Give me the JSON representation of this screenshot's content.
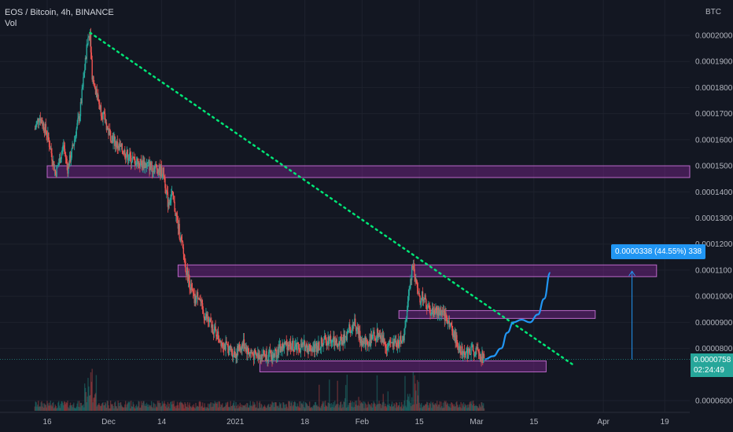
{
  "legend": {
    "symbol": "EOS / Bitcoin, 4h, BINANCE",
    "volume": "Vol"
  },
  "currency": "BTC",
  "last_price": {
    "value": "0.0000758",
    "countdown": "02:24:49"
  },
  "measure": {
    "label": "0.0000338 (44.55%) 338"
  },
  "colors": {
    "background": "#131722",
    "up": "#26a69a",
    "down": "#ef5350",
    "zone_fill": "#9c27b0",
    "trendline": "#00e676",
    "projection": "#2196f3",
    "measure": "#2196f3"
  },
  "chart_data": {
    "type": "candlestick",
    "title": "EOS / Bitcoin, 4h, BINANCE",
    "y_axis": {
      "ticks": [
        "0.0002000",
        "0.0001900",
        "0.0001800",
        "0.0001700",
        "0.0001600",
        "0.0001500",
        "0.0001400",
        "0.0001300",
        "0.0001200",
        "0.0001100",
        "0.0001000",
        "0.0000900",
        "0.0000800",
        "0.0000600"
      ],
      "tick_values": [
        0.0002,
        0.00019,
        0.00018,
        0.00017,
        0.00016,
        0.00015,
        0.00014,
        0.00013,
        0.00012,
        0.00011,
        0.0001,
        9e-05,
        8e-05,
        6e-05
      ],
      "range": [
        5.7e-05,
        0.000205
      ]
    },
    "x_axis": {
      "ticks": [
        "16",
        "Dec",
        "14",
        "2021",
        "18",
        "Feb",
        "15",
        "Mar",
        "15",
        "Apr",
        "19"
      ],
      "tick_values": [
        0,
        15,
        28,
        46,
        63,
        77,
        91,
        105,
        119,
        136,
        151
      ],
      "unit": "days from Nov 16, 2020",
      "range": [
        -3,
        160
      ]
    },
    "price_path": [
      [
        -3,
        0.000164
      ],
      [
        -2,
        0.000169
      ],
      [
        -1,
        0.000166
      ],
      [
        0,
        0.000162
      ],
      [
        1,
        0.000155
      ],
      [
        2,
        0.000147
      ],
      [
        3,
        0.000152
      ],
      [
        4,
        0.000158
      ],
      [
        5,
        0.000149
      ],
      [
        6,
        0.000155
      ],
      [
        7,
        0.000163
      ],
      [
        8,
        0.00017
      ],
      [
        9,
        0.000185
      ],
      [
        10,
        0.000199
      ],
      [
        10.5,
        0.000201
      ],
      [
        11,
        0.000185
      ],
      [
        12,
        0.000178
      ],
      [
        13,
        0.000172
      ],
      [
        14,
        0.000168
      ],
      [
        15,
        0.000163
      ],
      [
        17,
        0.000158
      ],
      [
        19,
        0.000155
      ],
      [
        21,
        0.000152
      ],
      [
        23,
        0.000151
      ],
      [
        25,
        0.00015
      ],
      [
        27,
        0.000149
      ],
      [
        28.5,
        0.000147
      ],
      [
        29.5,
        0.000136
      ],
      [
        30.5,
        0.000139
      ],
      [
        31,
        0.000135
      ],
      [
        32,
        0.000127
      ],
      [
        33,
        0.000119
      ],
      [
        34,
        0.00011
      ],
      [
        35,
        0.000104
      ],
      [
        36,
        9.8e-05
      ],
      [
        37,
        0.000101
      ],
      [
        38,
        9.4e-05
      ],
      [
        40,
        8.9e-05
      ],
      [
        42,
        8.4e-05
      ],
      [
        44,
        8e-05
      ],
      [
        46,
        7.8e-05
      ],
      [
        48,
        8.2e-05
      ],
      [
        49,
        7.9e-05
      ],
      [
        51,
        7.7e-05
      ],
      [
        53,
        7.8e-05
      ],
      [
        55,
        7.7e-05
      ],
      [
        57,
        8e-05
      ],
      [
        59,
        8.2e-05
      ],
      [
        61,
        8e-05
      ],
      [
        63,
        8.1e-05
      ],
      [
        65,
        8e-05
      ],
      [
        67,
        8.2e-05
      ],
      [
        69,
        8.4e-05
      ],
      [
        71,
        8.1e-05
      ],
      [
        73,
        8.5e-05
      ],
      [
        75,
        9e-05
      ],
      [
        77,
        8.2e-05
      ],
      [
        79,
        8.3e-05
      ],
      [
        81,
        8.6e-05
      ],
      [
        83,
        8.1e-05
      ],
      [
        85,
        8.2e-05
      ],
      [
        87,
        8.3e-05
      ],
      [
        88,
        9.5e-05
      ],
      [
        89,
        0.000108
      ],
      [
        89.5,
        0.000113
      ],
      [
        90,
        0.000106
      ],
      [
        91,
        9.9e-05
      ],
      [
        92,
        0.0001
      ],
      [
        93,
        9.5e-05
      ],
      [
        94,
        9.4e-05
      ],
      [
        96,
        9.4e-05
      ],
      [
        98,
        9.1e-05
      ],
      [
        99,
        8.7e-05
      ],
      [
        100,
        8.3e-05
      ],
      [
        101,
        8e-05
      ],
      [
        103,
        7.8e-05
      ],
      [
        104,
        8e-05
      ],
      [
        106,
        7.7e-05
      ],
      [
        107,
        7.58e-05
      ]
    ],
    "horizontal_zones": [
      {
        "from_day": 0,
        "to_day": 160,
        "low": 0.0001455,
        "high": 0.00015
      },
      {
        "from_day": 32,
        "to_day": 149,
        "low": 0.0001075,
        "high": 0.000112
      },
      {
        "from_day": 86,
        "to_day": 134,
        "low": 9.15e-05,
        "high": 9.45e-05
      },
      {
        "from_day": 52,
        "to_day": 122,
        "low": 7.1e-05,
        "high": 7.52e-05
      }
    ],
    "trendline": {
      "from": [
        10.5,
        0.000201
      ],
      "to": [
        129,
        7.33e-05
      ]
    },
    "projection": [
      [
        107,
        7.58e-05
      ],
      [
        109,
        7.7e-05
      ],
      [
        111,
        8e-05
      ],
      [
        112.5,
        8.6e-05
      ],
      [
        114,
        9e-05
      ],
      [
        116,
        9.1e-05
      ],
      [
        118,
        9e-05
      ],
      [
        120,
        9.3e-05
      ],
      [
        121.5,
        9.9e-05
      ],
      [
        123,
        0.000109
      ]
    ],
    "measure_arrow": {
      "day": 143,
      "from": 7.58e-05,
      "to": 0.0001096
    },
    "volume": "shown as bars along the bottom"
  }
}
